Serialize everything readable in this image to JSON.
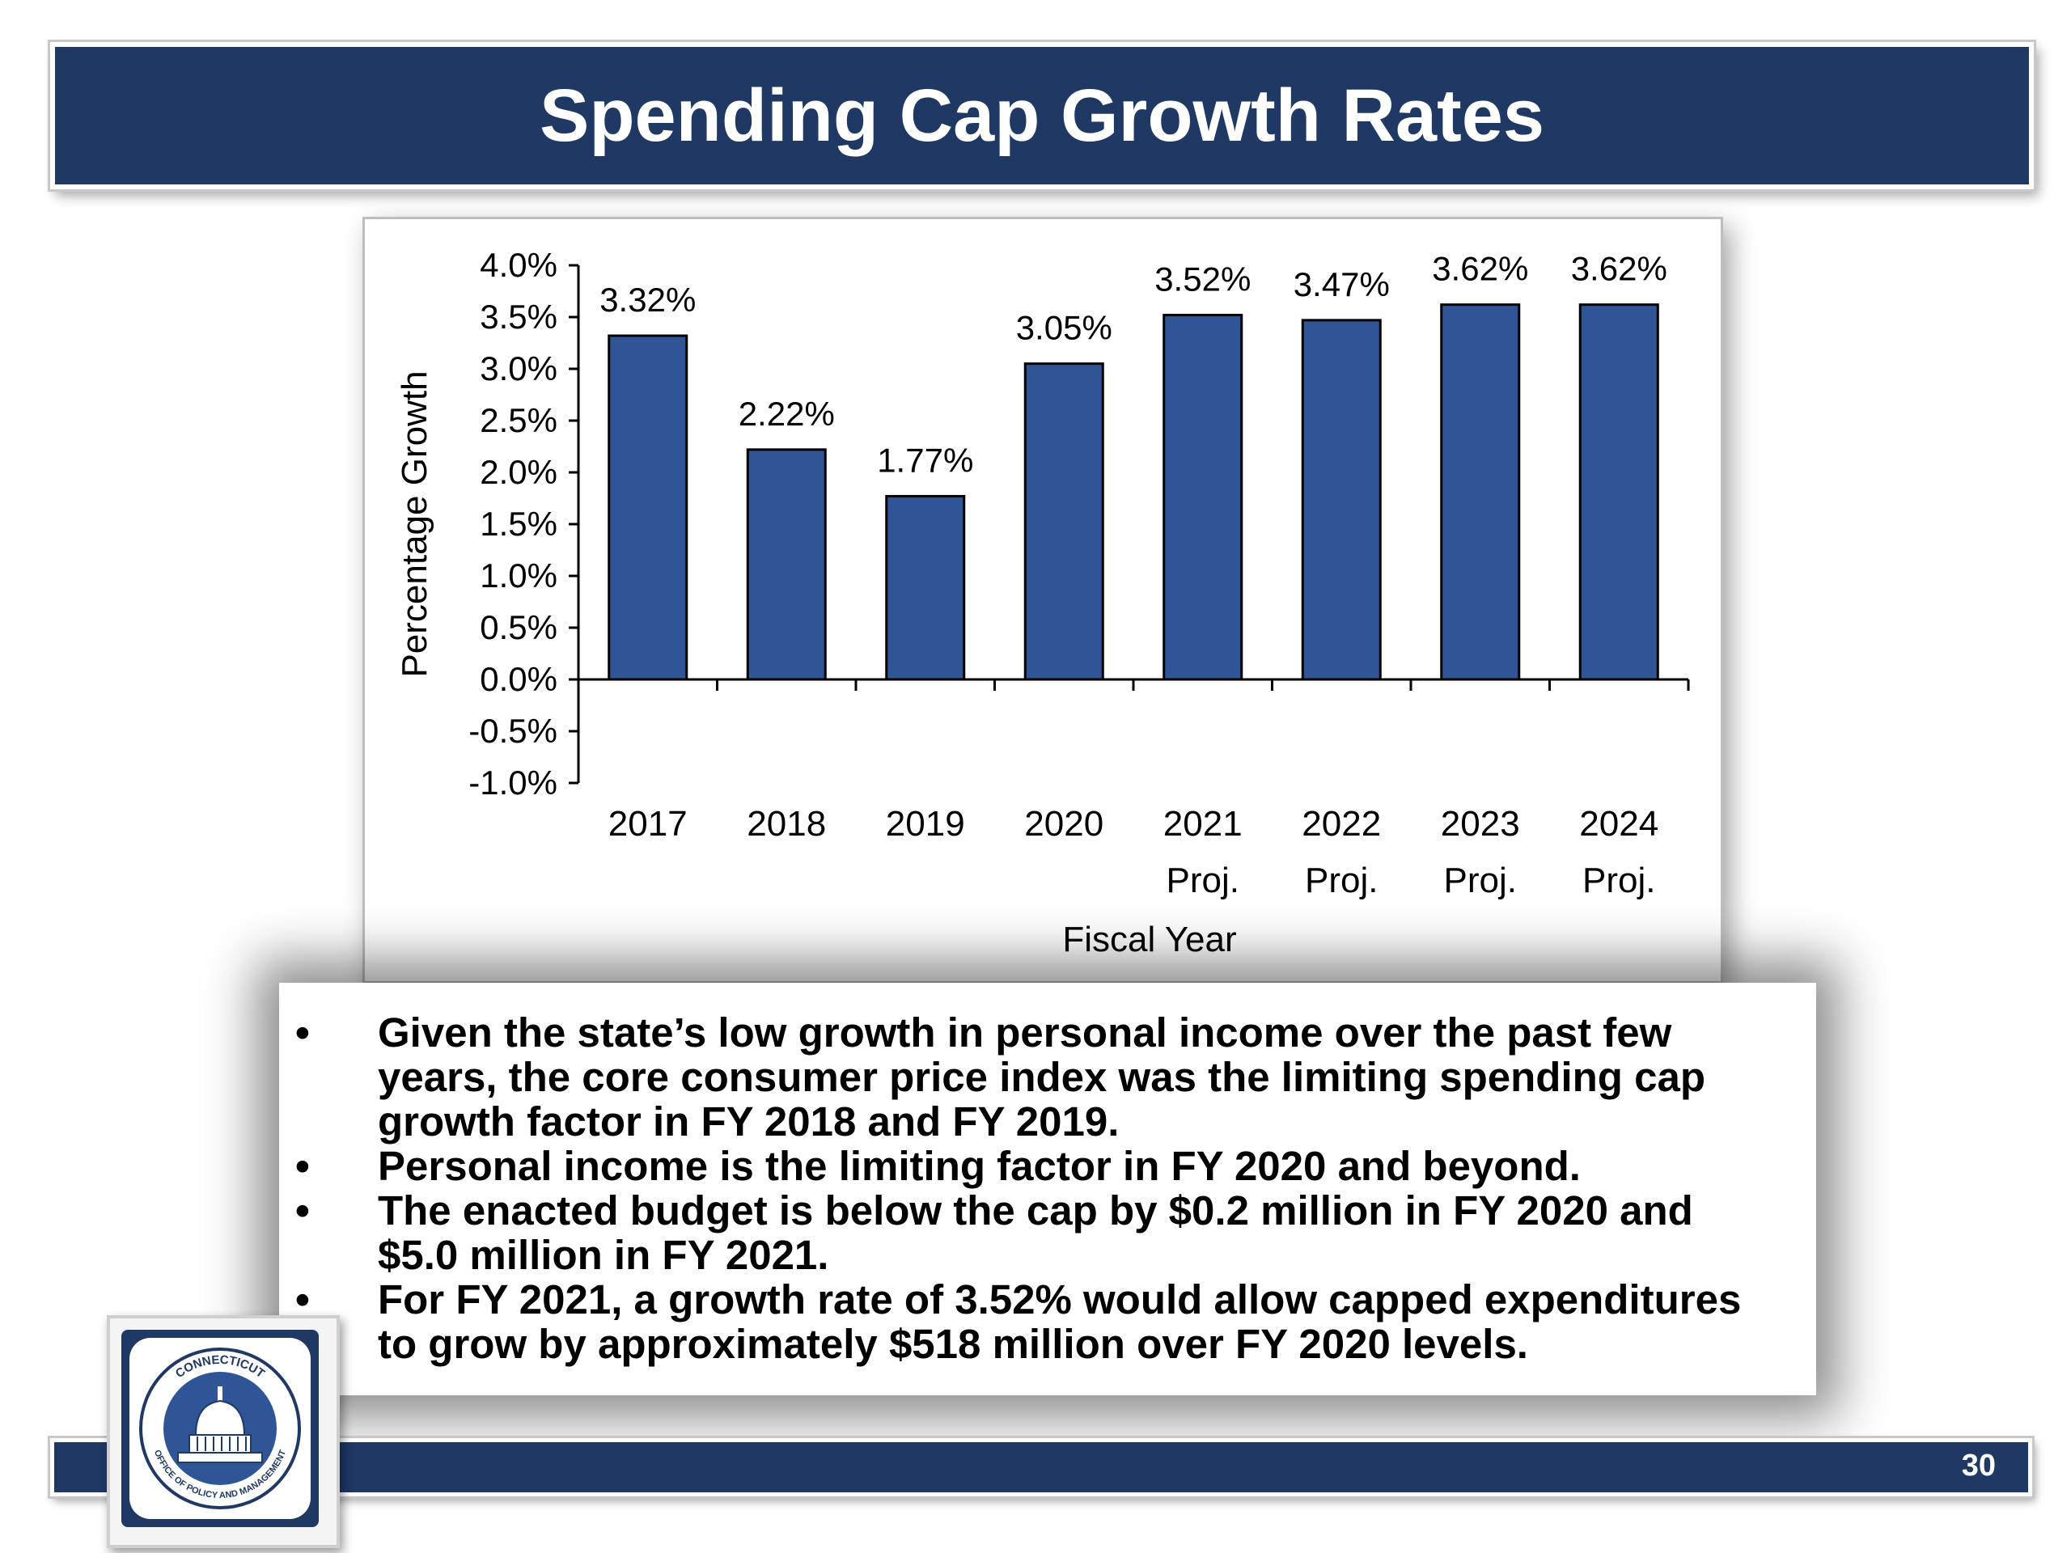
{
  "header": {
    "title": "Spending Cap Growth Rates"
  },
  "chart_data": {
    "type": "bar",
    "categories": [
      [
        "2017"
      ],
      [
        "2018"
      ],
      [
        "2019"
      ],
      [
        "2020"
      ],
      [
        "2021",
        "Proj."
      ],
      [
        "2022",
        "Proj."
      ],
      [
        "2023",
        "Proj."
      ],
      [
        "2024",
        "Proj."
      ]
    ],
    "values": [
      3.32,
      2.22,
      1.77,
      3.05,
      3.52,
      3.47,
      3.62,
      3.62
    ],
    "data_labels": [
      "3.32%",
      "2.22%",
      "1.77%",
      "3.05%",
      "3.52%",
      "3.47%",
      "3.62%",
      "3.62%"
    ],
    "xlabel": "Fiscal Year",
    "ylabel": "Percentage Growth",
    "ylim": [
      -1.0,
      4.0
    ],
    "yticks": [
      4.0,
      3.5,
      3.0,
      2.5,
      2.0,
      1.5,
      1.0,
      0.5,
      0.0,
      -0.5,
      -1.0
    ],
    "ytick_labels": [
      "4.0%",
      "3.5%",
      "3.0%",
      "2.5%",
      "2.0%",
      "1.5%",
      "1.0%",
      "0.5%",
      "0.0%",
      "-0.5%",
      "-1.0%"
    ],
    "bar_color": "#2f5597",
    "grid": false,
    "legend": "none"
  },
  "bullets": [
    "Given the state’s low growth in personal income over the past few years, the core consumer price index was the limiting spending cap growth factor in FY 2018 and FY 2019.",
    "Personal income is the limiting factor in FY 2020 and beyond.",
    "The enacted budget is below the cap by $0.2 million in FY 2020 and $5.0 million in FY 2021.",
    "For FY 2021, a growth rate of 3.52% would allow capped expenditures to grow by approximately $518 million over FY 2020 levels."
  ],
  "bullet_symbol": "•",
  "footer": {
    "page_number": "30"
  },
  "logo": {
    "icon": "state-capitol-dome-seal-icon",
    "arc_top": "CONNECTICUT",
    "arc_bottom": "OFFICE OF POLICY AND MANAGEMENT"
  },
  "colors": {
    "banner": "#1f3864",
    "bar": "#2f5597"
  }
}
